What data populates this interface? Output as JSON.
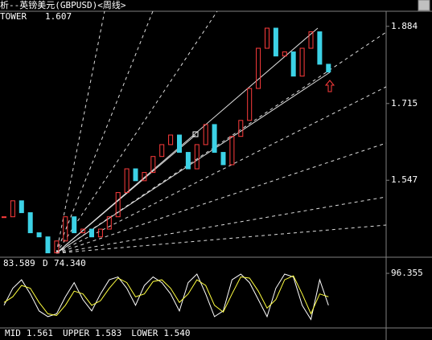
{
  "chart_data": [
    {
      "type": "tower",
      "title": "析--英镑美元(GBPUSD)<周线>",
      "indicator_label": "TOWER",
      "indicator_value": "1.607",
      "up_color": "#ff3c3c",
      "down_color": "#3cd2e6",
      "values": [
        1.467,
        1.502,
        1.476,
        1.432,
        1.423,
        1.388,
        1.414,
        1.467,
        1.432,
        1.44,
        1.423,
        1.44,
        1.467,
        1.52,
        1.572,
        1.546,
        1.564,
        1.599,
        1.625,
        1.646,
        1.608,
        1.572,
        1.625,
        1.669,
        1.608,
        1.581,
        1.643,
        1.678,
        1.748,
        1.836,
        1.88,
        1.819,
        1.828,
        1.775,
        1.836,
        1.872,
        1.801,
        1.784
      ],
      "ylim": [
        1.382,
        1.917
      ],
      "yticks": [
        1.884,
        1.715,
        1.547
      ],
      "indicators": [
        {
          "name": "MID",
          "value": "1.561",
          "color": "#ffffff"
        },
        {
          "name": "UPPER",
          "value": "1.583",
          "color": "#ffff00"
        },
        {
          "name": "LOWER",
          "value": "1.540",
          "color": "#ff40ff"
        }
      ]
    },
    {
      "type": "line",
      "k_value": "83.589",
      "d_label": "D",
      "d_value": "74.340",
      "series": [
        {
          "color": "#ffffff",
          "values": [
            40,
            70,
            85,
            60,
            30,
            20,
            25,
            55,
            80,
            50,
            30,
            60,
            85,
            90,
            70,
            40,
            75,
            90,
            80,
            60,
            30,
            80,
            95,
            60,
            20,
            30,
            85,
            95,
            80,
            50,
            20,
            70,
            95,
            90,
            40,
            15,
            85,
            40
          ]
        },
        {
          "color": "#ffff40",
          "values": [
            45,
            55,
            75,
            70,
            45,
            25,
            22,
            40,
            65,
            60,
            40,
            48,
            70,
            88,
            80,
            55,
            60,
            82,
            85,
            70,
            45,
            60,
            85,
            75,
            40,
            28,
            60,
            90,
            88,
            65,
            35,
            50,
            85,
            92,
            60,
            25,
            60,
            55
          ]
        }
      ],
      "ylim": [
        0,
        122
      ],
      "yticks": [
        96.355
      ]
    }
  ]
}
